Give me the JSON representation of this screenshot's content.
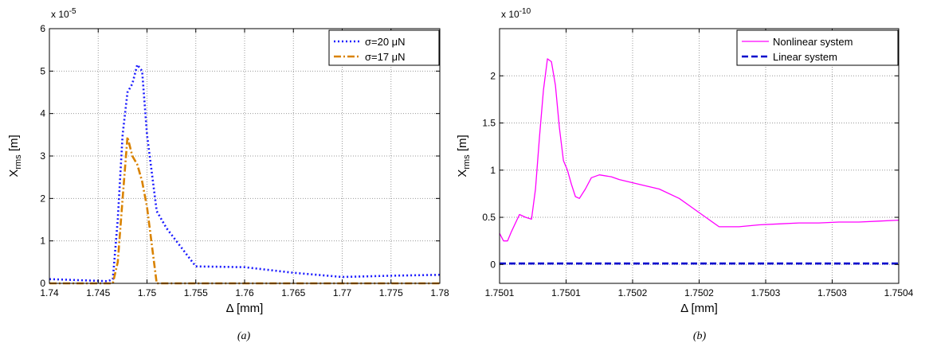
{
  "chart_data": [
    {
      "type": "line",
      "caption": "(a)",
      "xlabel": "Δ [mm]",
      "ylabel_main": "X",
      "ylabel_sub": "rms",
      "ylabel_unit": " [m]",
      "y_multiplier_base": "x 10",
      "y_multiplier_exp": "-5",
      "xlim": [
        1.74,
        1.78
      ],
      "ylim": [
        0,
        6
      ],
      "xticks": [
        1.74,
        1.745,
        1.75,
        1.755,
        1.76,
        1.765,
        1.77,
        1.775,
        1.78
      ],
      "xtick_labels": [
        "1.74",
        "1.745",
        "1.75",
        "1.755",
        "1.76",
        "1.765",
        "1.77",
        "1.775",
        "1.78"
      ],
      "yticks": [
        0,
        1,
        2,
        3,
        4,
        5,
        6
      ],
      "ytick_labels": [
        "0",
        "1",
        "2",
        "3",
        "4",
        "5",
        "6"
      ],
      "grid": true,
      "legend_position": "top-right",
      "series": [
        {
          "name": "σ=20 μN",
          "color": "#1a1aff",
          "style": "dotted",
          "x": [
            1.74,
            1.746,
            1.7465,
            1.747,
            1.7475,
            1.748,
            1.7485,
            1.749,
            1.7495,
            1.75,
            1.751,
            1.752,
            1.755,
            1.76,
            1.765,
            1.77,
            1.775,
            1.78
          ],
          "y": [
            0.1,
            0.05,
            0.1,
            1.5,
            3.5,
            4.5,
            4.7,
            5.15,
            5.0,
            3.5,
            1.7,
            1.3,
            0.4,
            0.38,
            0.25,
            0.15,
            0.18,
            0.2
          ]
        },
        {
          "name": "σ=17 μN",
          "color": "#d98200",
          "style": "dashdot",
          "x": [
            1.74,
            1.7465,
            1.747,
            1.7475,
            1.748,
            1.7485,
            1.749,
            1.7495,
            1.75,
            1.7505,
            1.751,
            1.755,
            1.76,
            1.78
          ],
          "y": [
            0,
            0,
            0.5,
            2.0,
            3.45,
            3.0,
            2.8,
            2.4,
            1.8,
            0.9,
            0,
            0,
            0,
            0
          ]
        }
      ]
    },
    {
      "type": "line",
      "caption": "(b)",
      "xlabel": "Δ [mm]",
      "ylabel_main": "X",
      "ylabel_sub": "rms",
      "ylabel_unit": " [m]",
      "y_multiplier_base": "x 10",
      "y_multiplier_exp": "-10",
      "xlim": [
        0,
        1
      ],
      "ylim": [
        -0.2,
        2.5
      ],
      "xticks": [
        0,
        0.1667,
        0.3333,
        0.5,
        0.6667,
        0.8333,
        1.0
      ],
      "xtick_labels": [
        "1.7501",
        "1.7501",
        "1.7502",
        "1.7502",
        "1.7503",
        "1.7503",
        "1.7504"
      ],
      "yticks": [
        0,
        0.5,
        1,
        1.5,
        2
      ],
      "ytick_labels": [
        "0",
        "0.5",
        "1",
        "1.5",
        "2"
      ],
      "grid": true,
      "legend_position": "top-right",
      "series": [
        {
          "name": "Nonlinear system",
          "color": "#ff00ff",
          "style": "solid",
          "x": [
            0,
            0.01,
            0.02,
            0.03,
            0.05,
            0.065,
            0.08,
            0.09,
            0.1,
            0.11,
            0.12,
            0.13,
            0.14,
            0.15,
            0.16,
            0.17,
            0.18,
            0.19,
            0.2,
            0.215,
            0.23,
            0.25,
            0.28,
            0.3,
            0.35,
            0.4,
            0.45,
            0.5,
            0.55,
            0.6,
            0.65,
            0.7,
            0.75,
            0.8,
            0.85,
            0.9,
            0.95,
            1.0
          ],
          "y": [
            0.33,
            0.25,
            0.25,
            0.35,
            0.53,
            0.5,
            0.48,
            0.8,
            1.35,
            1.85,
            2.18,
            2.15,
            1.9,
            1.45,
            1.1,
            1.0,
            0.85,
            0.72,
            0.7,
            0.8,
            0.92,
            0.95,
            0.93,
            0.9,
            0.85,
            0.8,
            0.7,
            0.55,
            0.4,
            0.4,
            0.42,
            0.43,
            0.44,
            0.44,
            0.45,
            0.45,
            0.46,
            0.47
          ]
        },
        {
          "name": "Linear system",
          "color": "#0000cc",
          "style": "dashed",
          "x": [
            0,
            1
          ],
          "y": [
            0.01,
            0.01
          ]
        }
      ]
    }
  ]
}
